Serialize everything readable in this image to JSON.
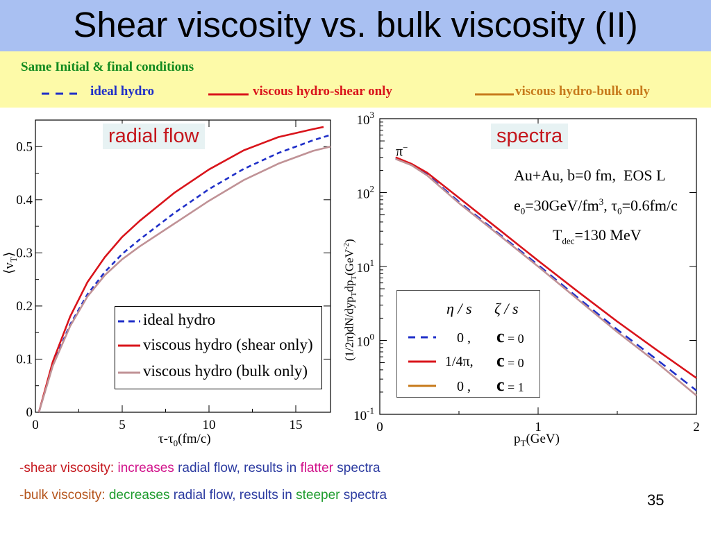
{
  "slide": {
    "title": "Shear viscosity vs. bulk viscosity (II)",
    "page_number": "35",
    "background_colors": {
      "title_bar": "#a9c0f2",
      "conditions_bar": "#fdfaa8"
    }
  },
  "conditions": {
    "title": "Same Initial & final conditions",
    "legend": [
      {
        "label": "ideal hydro",
        "style": "dashed",
        "color": "#1f2fc8"
      },
      {
        "label": "viscous hydro-shear only",
        "style": "solid",
        "color": "#d9141b"
      },
      {
        "label": "viscous hydro-bulk only",
        "style": "solid",
        "color": "#c77a1b"
      }
    ]
  },
  "left_panel": {
    "tag": "radial flow",
    "y_label_main": "⟨v",
    "y_label_sub": "T",
    "y_label_end": "⟩",
    "x_label_main": "τ-τ",
    "x_label_sub": "0",
    "x_label_end": "(fm/c)",
    "legend": [
      "ideal hydro",
      "viscous hydro (shear only)",
      "viscous hydro (bulk only)"
    ]
  },
  "right_panel": {
    "tag": "spectra",
    "particle": "π",
    "particle_sup": "−",
    "annot_line1_a": "Au+Au, b=0 fm,",
    "annot_line1_b": "EOS L",
    "annot_line2_a": "e",
    "annot_line2_a_sub": "0",
    "annot_line2_b": "=30GeV/fm",
    "annot_line2_b_sup": "3",
    "annot_line2_c": ", τ",
    "annot_line2_c_sub": "0",
    "annot_line2_d": "=0.6fm/c",
    "annot_line3_a": "T",
    "annot_line3_a_sub": "dec",
    "annot_line3_b": "=130 MeV",
    "y_label": "(1/2π)dN/dyp_T dp_T (GeV^-2)",
    "x_label_main": "p",
    "x_label_sub": "T",
    "x_label_end": "(GeV)",
    "table": {
      "header_eta": "η / s",
      "header_zeta": "ζ / s",
      "rows": [
        {
          "eta": "0  ,",
          "zeta": "= 0",
          "style": "dashed",
          "color": "#1f2fc8"
        },
        {
          "eta": "1/4π,",
          "zeta": "= 0",
          "style": "solid",
          "color": "#d9141b"
        },
        {
          "eta": "0  ,",
          "zeta": "= 1",
          "style": "solid",
          "color": "#c77a1b"
        }
      ],
      "zeta_symbol": "c"
    }
  },
  "bottom": {
    "line1": [
      {
        "text": "-",
        "color": "#c4161c"
      },
      {
        "text": "shear viscosity: ",
        "color": "#c4161c"
      },
      {
        "text": "increases",
        "color": "#d1118a"
      },
      {
        "text": " radial flow, results in ",
        "color": "#2b3aa0"
      },
      {
        "text": "flatter",
        "color": "#d1118a"
      },
      {
        "text": " spectra",
        "color": "#2b3aa0"
      }
    ],
    "line2": [
      {
        "text": "-bulk viscosity:   ",
        "color": "#b5541b"
      },
      {
        "text": "decreases",
        "color": "#1c9b2c"
      },
      {
        "text": " radial flow, results in ",
        "color": "#2b3aa0"
      },
      {
        "text": "steeper",
        "color": "#1c9b2c"
      },
      {
        "text": " spectra",
        "color": "#2b3aa0"
      }
    ]
  },
  "chart_data": [
    {
      "type": "line",
      "title": "radial flow",
      "xlabel": "τ-τ0(fm/c)",
      "ylabel": "⟨vT⟩",
      "xlim": [
        0,
        17
      ],
      "ylim": [
        0,
        0.55
      ],
      "xticks": [
        0,
        5,
        10,
        15
      ],
      "yticks": [
        0,
        0.1,
        0.2,
        0.3,
        0.4,
        0.5
      ],
      "ytick_labels": [
        "0",
        "0.1",
        "0.2",
        "0.3",
        "0.4",
        "0.5"
      ],
      "legend_position": "bottom-right",
      "grid": false,
      "series": [
        {
          "name": "ideal hydro",
          "color": "#1f2fc8",
          "style": "dashed",
          "x": [
            0.2,
            1,
            2,
            3,
            4,
            5,
            6,
            8,
            10,
            12,
            14,
            16,
            17
          ],
          "y": [
            0.0,
            0.09,
            0.165,
            0.222,
            0.264,
            0.298,
            0.325,
            0.375,
            0.42,
            0.458,
            0.488,
            0.512,
            0.522
          ]
        },
        {
          "name": "viscous hydro (shear only)",
          "color": "#d9141b",
          "style": "solid",
          "x": [
            0.2,
            1,
            2,
            3,
            4,
            5,
            6,
            8,
            10,
            12,
            14,
            16,
            16.6
          ],
          "y": [
            0.0,
            0.095,
            0.18,
            0.245,
            0.292,
            0.33,
            0.36,
            0.413,
            0.457,
            0.493,
            0.518,
            0.533,
            0.537
          ]
        },
        {
          "name": "viscous hydro (bulk only)",
          "color": "#c09296",
          "style": "solid",
          "x": [
            0.2,
            1,
            2,
            3,
            4,
            5,
            6,
            8,
            10,
            12,
            14,
            16,
            17
          ],
          "y": [
            0.0,
            0.087,
            0.162,
            0.218,
            0.258,
            0.288,
            0.312,
            0.355,
            0.398,
            0.437,
            0.468,
            0.492,
            0.5
          ]
        }
      ]
    },
    {
      "type": "line",
      "title": "spectra",
      "xlabel": "pT(GeV)",
      "ylabel": "(1/2π)dN/dypTdpT(GeV^-2)",
      "xlim": [
        0,
        2
      ],
      "ylim": [
        0.1,
        1000
      ],
      "yscale": "log",
      "xticks": [
        0,
        1,
        2
      ],
      "yticks": [
        0.1,
        1,
        10,
        100,
        1000
      ],
      "ytick_labels": [
        "10^-1",
        "10^0",
        "10^1",
        "10^2",
        "10^3"
      ],
      "grid": false,
      "series": [
        {
          "name": "η/s = 0, ζ/s = 0",
          "color": "#1f2fc8",
          "style": "dashed",
          "x": [
            0.1,
            0.2,
            0.3,
            0.5,
            0.75,
            1.0,
            1.25,
            1.5,
            1.75,
            2.0
          ],
          "y": [
            290,
            240,
            175,
            75,
            28,
            10.5,
            3.8,
            1.4,
            0.55,
            0.21
          ]
        },
        {
          "name": "η/s = 1/4π, ζ/s = 0",
          "color": "#d9141b",
          "style": "solid",
          "x": [
            0.1,
            0.2,
            0.3,
            0.5,
            0.75,
            1.0,
            1.25,
            1.5,
            1.75,
            2.0
          ],
          "y": [
            300,
            245,
            185,
            85,
            32,
            12,
            4.6,
            1.8,
            0.74,
            0.31
          ]
        },
        {
          "name": "η/s = 0, ζ/s = 1",
          "color": "#c09296",
          "style": "solid",
          "x": [
            0.1,
            0.2,
            0.3,
            0.5,
            0.75,
            1.0,
            1.25,
            1.5,
            1.75,
            2.0
          ],
          "y": [
            285,
            235,
            170,
            72,
            27,
            10.0,
            3.6,
            1.3,
            0.5,
            0.18
          ]
        }
      ]
    }
  ]
}
